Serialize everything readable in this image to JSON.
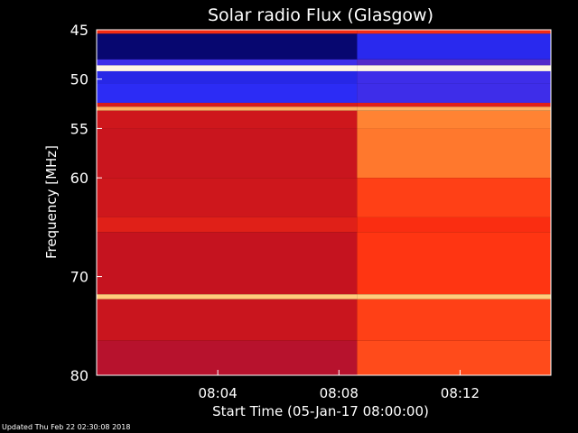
{
  "chart_data": {
    "type": "heatmap",
    "title": "Solar radio Flux (Glasgow)",
    "xlabel": "Start Time (05-Jan-17 08:00:00)",
    "ylabel": "Frequency [MHz]",
    "x_unit": "minutes after 08:00",
    "xlim": [
      0,
      15
    ],
    "ylim": [
      45,
      80
    ],
    "y_ticks": [
      45,
      50,
      55,
      60,
      70,
      80
    ],
    "x_ticks": [
      {
        "value": 4,
        "label": "08:04"
      },
      {
        "value": 8,
        "label": "08:08"
      },
      {
        "value": 12,
        "label": "08:12"
      }
    ],
    "colormap": [
      "#000000",
      "#0a0aa0",
      "#3030ff",
      "#c01020",
      "#ff3010",
      "#ff8030",
      "#ffd080",
      "#ffffff"
    ],
    "level_change_minute": 8.6,
    "bands": [
      {
        "freq": [
          45.0,
          45.4
        ],
        "level_before": 0.55,
        "level_after": 0.55
      },
      {
        "freq": [
          45.4,
          48.0
        ],
        "level_before": 0.1,
        "level_after": 0.26
      },
      {
        "freq": [
          48.0,
          48.6
        ],
        "level_before": 0.3,
        "level_after": 0.32
      },
      {
        "freq": [
          48.6,
          49.2
        ],
        "level_before": 0.97,
        "level_after": 0.97
      },
      {
        "freq": [
          49.2,
          50.4
        ],
        "level_before": 0.25,
        "level_after": 0.3
      },
      {
        "freq": [
          50.4,
          52.4
        ],
        "level_before": 0.27,
        "level_after": 0.3
      },
      {
        "freq": [
          52.4,
          52.8
        ],
        "level_before": 0.48,
        "level_after": 0.5
      },
      {
        "freq": [
          52.8,
          53.2
        ],
        "level_before": 0.8,
        "level_after": 0.8
      },
      {
        "freq": [
          53.2,
          55.0
        ],
        "level_before": 0.46,
        "level_after": 0.72
      },
      {
        "freq": [
          55.0,
          60.0
        ],
        "level_before": 0.45,
        "level_after": 0.7
      },
      {
        "freq": [
          60.0,
          64.0
        ],
        "level_before": 0.46,
        "level_after": 0.6
      },
      {
        "freq": [
          64.0,
          65.5
        ],
        "level_before": 0.5,
        "level_after": 0.56
      },
      {
        "freq": [
          65.5,
          71.8
        ],
        "level_before": 0.44,
        "level_after": 0.58
      },
      {
        "freq": [
          71.8,
          72.3
        ],
        "level_before": 0.85,
        "level_after": 0.85
      },
      {
        "freq": [
          72.3,
          76.5
        ],
        "level_before": 0.45,
        "level_after": 0.6
      },
      {
        "freq": [
          76.5,
          80.0
        ],
        "level_before": 0.42,
        "level_after": 0.62
      }
    ]
  },
  "footer": {
    "updated": "Updated Thu Feb 22 02:30:08 2018"
  }
}
